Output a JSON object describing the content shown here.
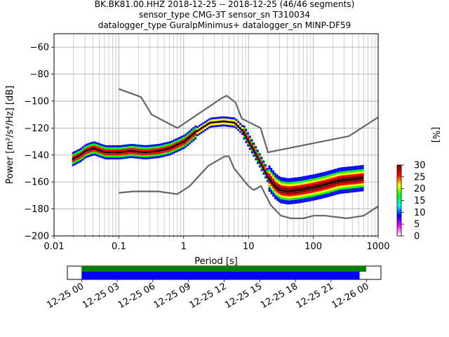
{
  "title_lines": [
    "BK.BK81.00.HHZ   2018-12-25 -- 2018-12-25  (46/46 segments)",
    "sensor_type CMG-3T sensor_sn T310034",
    "datalogger_type GuralpMinimus+ datalogger_sn MINP-DF59"
  ],
  "chart_data": [
    {
      "type": "heatmap",
      "name": "probabilistic-psd",
      "xlabel": "Period [s]",
      "ylabel": "Power [m²/s⁴/Hz] [dB]",
      "xscale": "log",
      "xlim": [
        0.01,
        1000
      ],
      "ylim": [
        -200,
        -50
      ],
      "grid": true,
      "xtick_labels": [
        "0.01",
        "0.1",
        "1",
        "10",
        "100",
        "1000"
      ],
      "xtick_values": [
        0.01,
        0.1,
        1,
        10,
        100,
        1000
      ],
      "ytick_values": [
        -200,
        -180,
        -160,
        -140,
        -120,
        -100,
        -80,
        -60
      ],
      "ytick_labels": [
        "−200",
        "−180",
        "−160",
        "−140",
        "−120",
        "−100",
        "−80",
        "−60"
      ],
      "colorbar": {
        "label": "[%]",
        "range": [
          0,
          30
        ],
        "ticks": [
          0,
          5,
          10,
          15,
          20,
          25,
          30
        ],
        "colors": [
          "#ffffff",
          "#ff00ff",
          "#0000ff",
          "#00ffff",
          "#00ff00",
          "#ffff00",
          "#ff0000",
          "#800000"
        ]
      },
      "mode_curve": {
        "period": [
          0.019,
          0.025,
          0.03,
          0.04,
          0.06,
          0.1,
          0.15,
          0.25,
          0.4,
          0.6,
          1.0,
          1.5,
          2.5,
          4.0,
          6.0,
          8.0,
          12.0,
          16.0,
          20.0,
          25.0,
          30.0,
          40.0,
          60.0,
          100.0,
          150.0,
          250.0,
          400.0,
          600.0
        ],
        "power": [
          -143,
          -140,
          -137,
          -135,
          -138,
          -138,
          -137,
          -138,
          -137,
          -135,
          -130,
          -123,
          -116,
          -115,
          -116,
          -122,
          -137,
          -148,
          -157,
          -163,
          -166,
          -167,
          -166,
          -164,
          -162,
          -159,
          -158,
          -157
        ]
      },
      "nlnm": {
        "period": [
          0.1,
          0.17,
          0.4,
          0.8,
          1.24,
          2.4,
          4.3,
          5.0,
          6.0,
          10.0,
          12.0,
          15.6,
          21.9,
          31.6,
          45.0,
          70.0,
          101.0,
          154.0,
          328.0,
          600.0,
          1000.0
        ],
        "power": [
          -168,
          -167,
          -167,
          -169,
          -163,
          -148,
          -141,
          -141,
          -150,
          -163,
          -166,
          -163,
          -177,
          -185,
          -187,
          -187,
          -185,
          -185,
          -187,
          -185,
          -178
        ]
      },
      "nhnm": {
        "period": [
          0.1,
          0.22,
          0.32,
          0.8,
          3.8,
          4.6,
          6.3,
          7.9,
          15.4,
          20.0,
          354.8,
          1000.0
        ],
        "power": [
          -91,
          -97,
          -110,
          -120,
          -98,
          -96,
          -101,
          -113,
          -120,
          -138,
          -126,
          -112
        ]
      }
    },
    {
      "type": "bar",
      "name": "data-availability",
      "xlabel": "",
      "xtick_labels": [
        "12-25 00",
        "12-25 03",
        "12-25 06",
        "12-25 09",
        "12-25 12",
        "12-25 15",
        "12-25 18",
        "12-25 21",
        "12-26 00"
      ],
      "xtick_hours": [
        0,
        3,
        6,
        9,
        12,
        15,
        18,
        21,
        24
      ],
      "xlim_hours": [
        -1.2,
        25.2
      ],
      "series": [
        {
          "color": "#008000",
          "start_hours": 0.0,
          "end_hours": 23.95
        },
        {
          "color": "#0000ff",
          "start_hours": 0.0,
          "end_hours": 23.4
        }
      ]
    }
  ]
}
